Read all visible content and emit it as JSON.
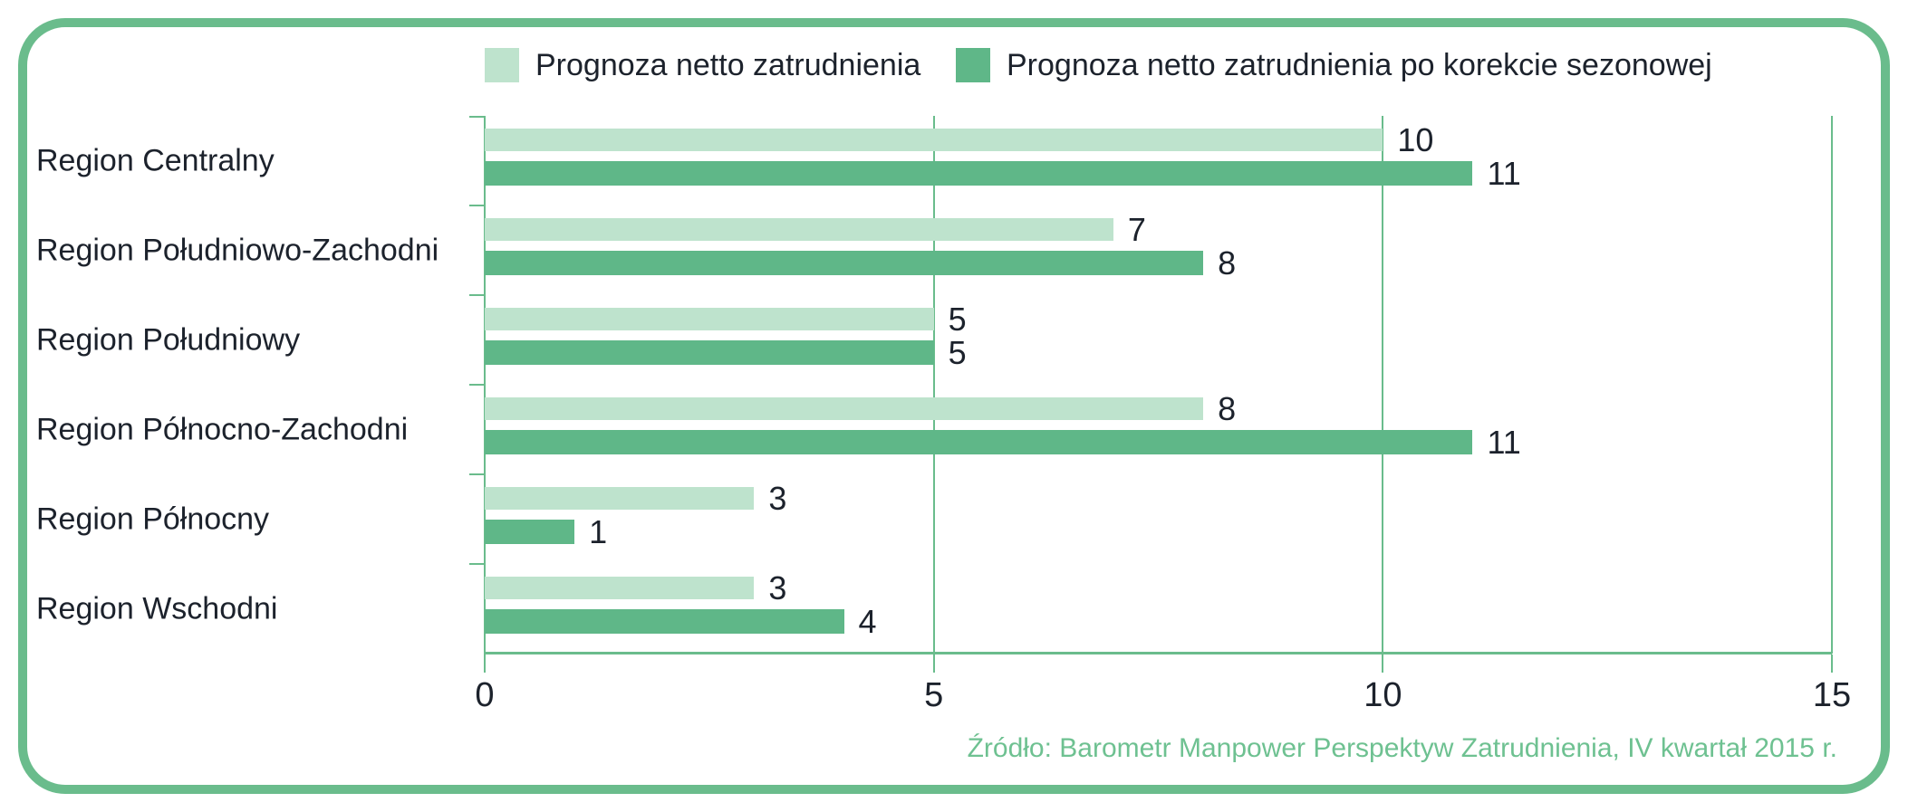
{
  "chart_data": {
    "type": "bar",
    "orientation": "horizontal",
    "title": "",
    "categories": [
      "Region Centralny",
      "Region Południowo-Zachodni",
      "Region Południowy",
      "Region Północno-Zachodni",
      "Region Północny",
      "Region Wschodni"
    ],
    "series": [
      {
        "name": "Prognoza netto zatrudnienia",
        "color": "#bee3cd",
        "values": [
          10,
          7,
          5,
          8,
          3,
          3
        ]
      },
      {
        "name": "Prognoza netto zatrudnienia po korekcie sezonowej",
        "color": "#5fb788",
        "values": [
          11,
          8,
          5,
          11,
          1,
          4
        ]
      }
    ],
    "xlim": [
      0,
      15
    ],
    "xticks": [
      0,
      5,
      10,
      15
    ],
    "grid": "vertical gridlines at 5, 10, 15",
    "legend_position": "top",
    "value_labels": true
  },
  "source_note": "Źródło: Barometr Manpower Perspektyw Zatrudnienia, IV kwartał 2015 r.",
  "colors": {
    "border_green": "#6abc8c",
    "series_light": "#bee3cd",
    "series_dark": "#5fb788",
    "text_dark": "#1c222c",
    "source_text_green": "#6ec191"
  }
}
